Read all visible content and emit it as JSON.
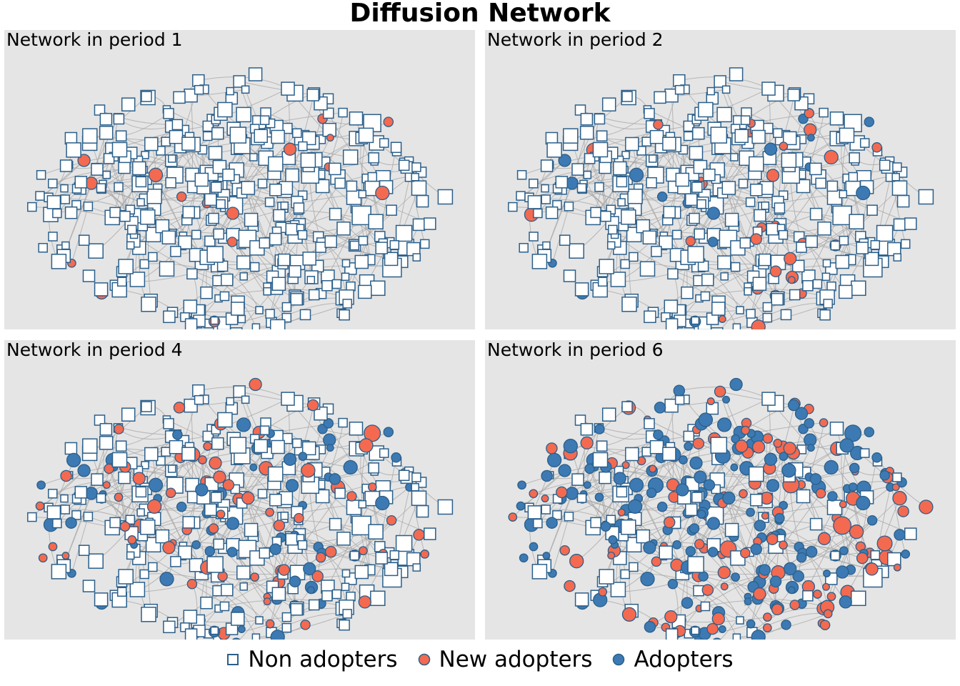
{
  "title": "Diffusion Network",
  "colors": {
    "panel_background": "#e5e5e5",
    "edge": "#a6a6a6",
    "node_border": "#2b5f8a",
    "non_adopter_fill": "#ffffff",
    "new_adopter_fill": "#f46a50",
    "adopter_fill": "#3d7ab3"
  },
  "panels": [
    {
      "label": "Network in period 1",
      "period": 1
    },
    {
      "label": "Network in period 2",
      "period": 2
    },
    {
      "label": "Network in period 4",
      "period": 4
    },
    {
      "label": "Network in period 6",
      "period": 6
    }
  ],
  "legend": [
    {
      "key": "non_adopter",
      "label": "Non adopters",
      "shape": "square"
    },
    {
      "key": "new_adopter",
      "label": "New adopters",
      "shape": "circle"
    },
    {
      "key": "adopter",
      "label": "Adopters",
      "shape": "circle"
    }
  ]
}
